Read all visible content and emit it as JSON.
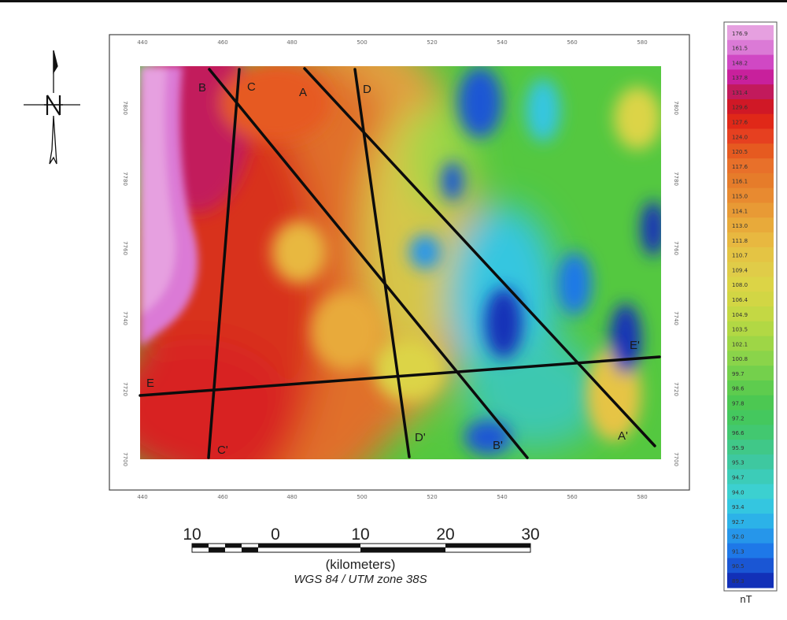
{
  "map": {
    "x_ticks": [
      "440",
      "460",
      "480",
      "500",
      "520",
      "540",
      "560",
      "580"
    ],
    "y_ticks": [
      "7800",
      "7780",
      "7760",
      "7740",
      "7720",
      "7700"
    ],
    "profiles": [
      {
        "start": "A",
        "end": "A'"
      },
      {
        "start": "B",
        "end": "B'"
      },
      {
        "start": "C",
        "end": "C'"
      },
      {
        "start": "D",
        "end": "D'"
      },
      {
        "start": "E",
        "end": "E'"
      }
    ]
  },
  "north_arrow": {
    "icon": "north-arrow-icon"
  },
  "scale_bar": {
    "ticks": [
      "10",
      "0",
      "10",
      "20",
      "30"
    ],
    "unit": "(kilometers)",
    "projection": "WGS 84 / UTM zone 38S"
  },
  "legend": {
    "unit": "nT",
    "values": [
      "176.9",
      "161.5",
      "148.2",
      "137.8",
      "131.4",
      "129.6",
      "127.6",
      "124.0",
      "120.5",
      "117.6",
      "116.1",
      "115.0",
      "114.1",
      "113.0",
      "111.8",
      "110.7",
      "109.4",
      "108.0",
      "106.4",
      "104.9",
      "103.5",
      "102.1",
      "100.8",
      "99.7",
      "98.6",
      "97.8",
      "97.2",
      "96.6",
      "95.9",
      "95.3",
      "94.7",
      "94.0",
      "93.4",
      "92.7",
      "92.0",
      "91.3",
      "90.5",
      "89.3"
    ],
    "colors": [
      "#e6a0e0",
      "#db7ad6",
      "#d048c4",
      "#c8209c",
      "#c21a5c",
      "#d01826",
      "#e02818",
      "#e64020",
      "#e65a20",
      "#e8702a",
      "#e67c2a",
      "#e88a30",
      "#e89a35",
      "#e8aa3a",
      "#e8b840",
      "#e4c444",
      "#e0cc48",
      "#dcd446",
      "#d2d644",
      "#c4d844",
      "#b2d844",
      "#9ed646",
      "#8ad44a",
      "#74d04c",
      "#5ecc4e",
      "#4cc852",
      "#44c85e",
      "#42c870",
      "#40c888",
      "#3ec8a0",
      "#3cccb8",
      "#3cd0d0",
      "#34c6e0",
      "#2cb2e8",
      "#2696ea",
      "#1e78e8",
      "#1a56d4",
      "#1230b8"
    ]
  }
}
